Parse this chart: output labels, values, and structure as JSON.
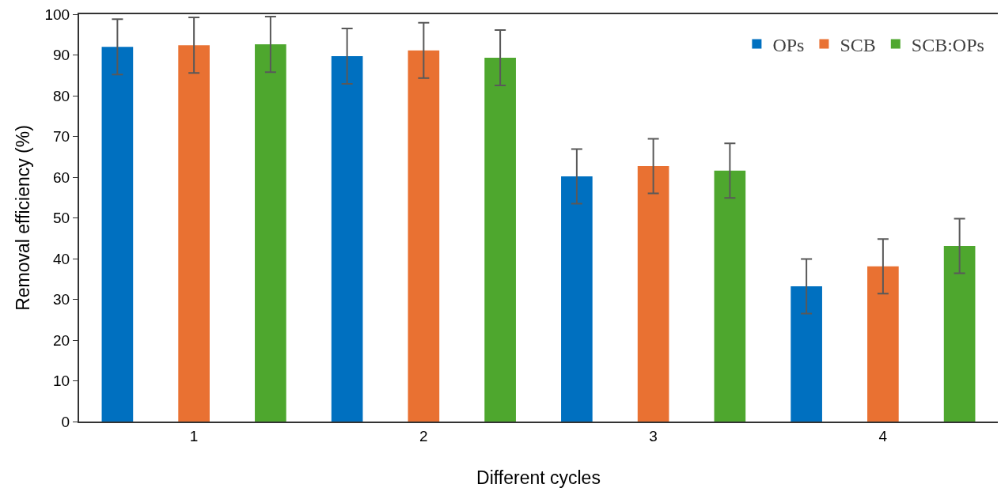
{
  "chart_data": {
    "type": "bar",
    "xlabel": "Different cycles",
    "ylabel": "Removal efficiency (%)",
    "categories": [
      "1",
      "2",
      "3",
      "4"
    ],
    "ylim": [
      0,
      100
    ],
    "yticks": [
      0,
      10,
      20,
      30,
      40,
      50,
      60,
      70,
      80,
      90,
      100
    ],
    "grid": false,
    "legend": "top right",
    "series": [
      {
        "name": "OPs",
        "color": "#0070c0",
        "values": [
          92.0,
          89.7,
          60.2,
          33.2
        ],
        "errors": [
          6.8,
          6.8,
          6.7,
          6.7
        ]
      },
      {
        "name": "SCB",
        "color": "#e97132",
        "values": [
          92.4,
          91.1,
          62.7,
          38.1
        ],
        "errors": [
          6.8,
          6.8,
          6.7,
          6.7
        ]
      },
      {
        "name": "SCB:OPs",
        "color": "#4ea72e",
        "values": [
          92.6,
          89.3,
          61.6,
          43.1
        ],
        "errors": [
          6.8,
          6.8,
          6.7,
          6.7
        ]
      }
    ]
  }
}
